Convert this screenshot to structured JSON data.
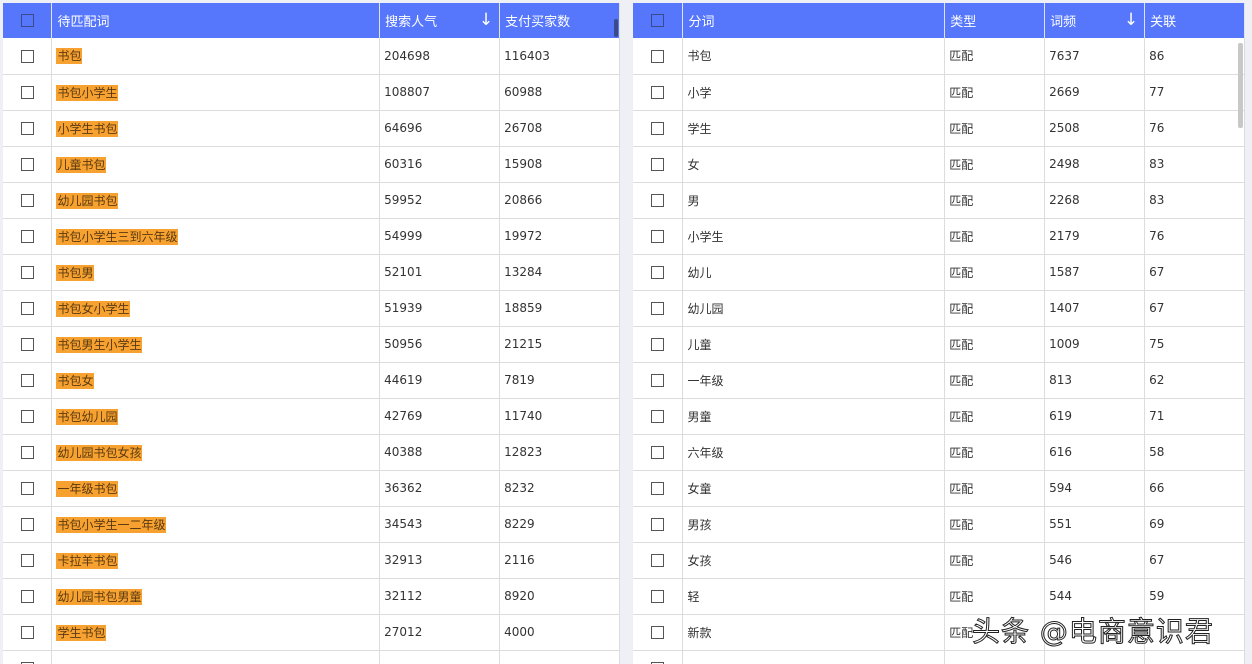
{
  "left": {
    "headers": [
      "待匹配词",
      "搜索人气",
      "支付买家数"
    ],
    "sort_icon": "arrow-down-icon",
    "rows": [
      [
        "书包",
        "204698",
        "116403"
      ],
      [
        "书包小学生",
        "108807",
        "60988"
      ],
      [
        "小学生书包",
        "64696",
        "26708"
      ],
      [
        "儿童书包",
        "60316",
        "15908"
      ],
      [
        "幼儿园书包",
        "59952",
        "20866"
      ],
      [
        "书包小学生三到六年级",
        "54999",
        "19972"
      ],
      [
        "书包男",
        "52101",
        "13284"
      ],
      [
        "书包女小学生",
        "51939",
        "18859"
      ],
      [
        "书包男生小学生",
        "50956",
        "21215"
      ],
      [
        "书包女",
        "44619",
        "7819"
      ],
      [
        "书包幼儿园",
        "42769",
        "11740"
      ],
      [
        "幼儿园书包女孩",
        "40388",
        "12823"
      ],
      [
        "一年级书包",
        "36362",
        "8232"
      ],
      [
        "书包小学生一二年级",
        "34543",
        "8229"
      ],
      [
        "卡拉羊书包",
        "32913",
        "2116"
      ],
      [
        "幼儿园书包男童",
        "32112",
        "8920"
      ],
      [
        "学生书包",
        "27012",
        "4000"
      ],
      [
        "",
        "",
        ""
      ]
    ]
  },
  "right": {
    "headers": [
      "分词",
      "类型",
      "词频",
      "关联"
    ],
    "sort_icon": "arrow-down-icon",
    "rows": [
      [
        "书包",
        "匹配",
        "7637",
        "86"
      ],
      [
        "小学",
        "匹配",
        "2669",
        "77"
      ],
      [
        "学生",
        "匹配",
        "2508",
        "76"
      ],
      [
        "女",
        "匹配",
        "2498",
        "83"
      ],
      [
        "男",
        "匹配",
        "2268",
        "83"
      ],
      [
        "小学生",
        "匹配",
        "2179",
        "76"
      ],
      [
        "幼儿",
        "匹配",
        "1587",
        "67"
      ],
      [
        "幼儿园",
        "匹配",
        "1407",
        "67"
      ],
      [
        "儿童",
        "匹配",
        "1009",
        "75"
      ],
      [
        "一年级",
        "匹配",
        "813",
        "62"
      ],
      [
        "男童",
        "匹配",
        "619",
        "71"
      ],
      [
        "六年级",
        "匹配",
        "616",
        "58"
      ],
      [
        "女童",
        "匹配",
        "594",
        "66"
      ],
      [
        "男孩",
        "匹配",
        "551",
        "69"
      ],
      [
        "女孩",
        "匹配",
        "546",
        "67"
      ],
      [
        "轻",
        "匹配",
        "544",
        "59"
      ],
      [
        "新款",
        "匹配",
        "",
        ""
      ],
      [
        "",
        "",
        "",
        ""
      ]
    ]
  },
  "highlight_color": "#f7a230",
  "header_color": "#5677fc",
  "watermark": "头条 @电商意识君"
}
